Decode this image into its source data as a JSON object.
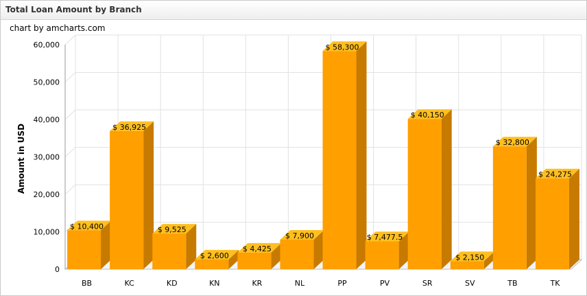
{
  "header": {
    "title": "Total Loan Amount by Branch"
  },
  "credit": "chart by amcharts.com",
  "colors": {
    "front": "#ff9f00",
    "top": "#ffbf1f",
    "side": "#c77a00",
    "grid": "#e2e2e2"
  },
  "chart_data": {
    "type": "bar",
    "title": "Total Loan Amount by Branch",
    "ylabel": "Amount in USD",
    "xlabel": "",
    "ylim": [
      0,
      60000
    ],
    "yticks": [
      "0",
      "10,000",
      "20,000",
      "30,000",
      "40,000",
      "50,000",
      "60,000"
    ],
    "grid": true,
    "categories": [
      "BB",
      "KC",
      "KD",
      "KN",
      "KR",
      "NL",
      "PP",
      "PV",
      "SR",
      "SV",
      "TB",
      "TK"
    ],
    "values": [
      10400,
      36925,
      9525,
      2600,
      4425,
      7900,
      58300,
      7477.5,
      40150,
      2150,
      32800,
      24275
    ],
    "labels": [
      "$ 10,400",
      "$ 36,925",
      "$ 9,525",
      "$ 2,600",
      "$ 4,425",
      "$ 7,900",
      "$ 58,300",
      "$ 7,477.5",
      "$ 40,150",
      "$ 2,150",
      "$ 32,800",
      "$ 24,275"
    ]
  }
}
